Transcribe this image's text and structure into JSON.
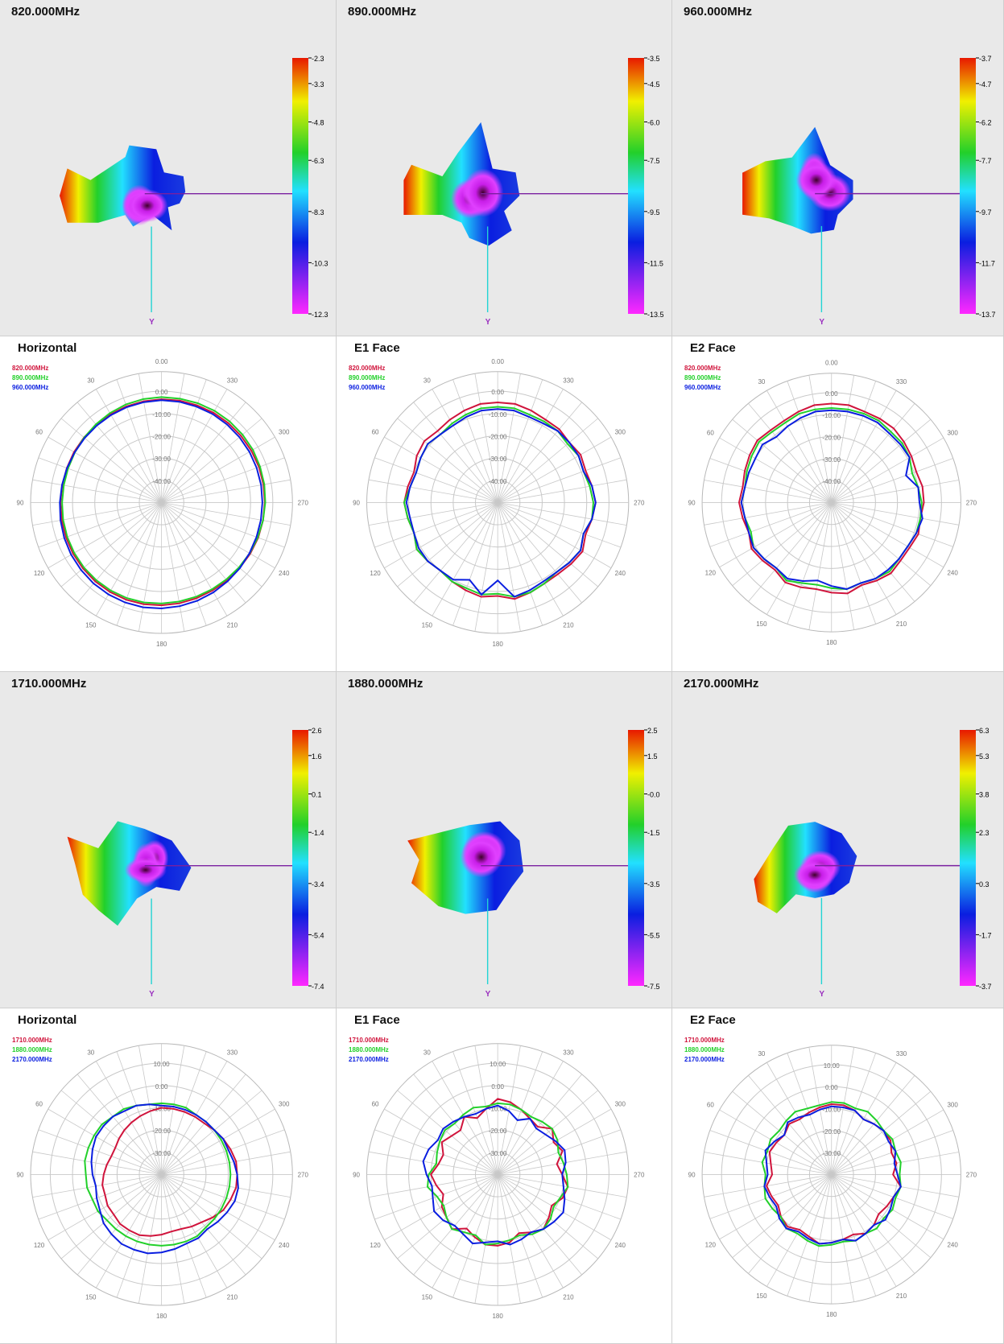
{
  "colors": {
    "series": [
      "#d0143c",
      "#22d02a",
      "#0a1ee0"
    ],
    "colorbar_top": "#e81800",
    "colorbar_bottom": "#ff28ff",
    "axis_y_line": "#22d4d4",
    "axis_x_line": "#7a1fa0",
    "axis_y_label": "#9a2fbf"
  },
  "icons": {
    "pattern_3d": "antenna-3d-radiation-pattern"
  },
  "panels3d": [
    {
      "title": "820.000MHz",
      "scale": [
        "-2.3",
        "-3.3",
        "-4.8",
        "-6.3",
        "-8.3",
        "-10.3",
        "-12.3"
      ],
      "axis_label": "Y"
    },
    {
      "title": "890.000MHz",
      "scale": [
        "-3.5",
        "-4.5",
        "-6.0",
        "-7.5",
        "-9.5",
        "-11.5",
        "-13.5"
      ],
      "axis_label": "Y"
    },
    {
      "title": "960.000MHz",
      "scale": [
        "-3.7",
        "-4.7",
        "-6.2",
        "-7.7",
        "-9.7",
        "-11.7",
        "-13.7"
      ],
      "axis_label": "Y"
    },
    {
      "title": "1710.000MHz",
      "scale": [
        "2.6",
        "1.6",
        "0.1",
        "-1.4",
        "-3.4",
        "-5.4",
        "-7.4"
      ],
      "axis_label": "Y"
    },
    {
      "title": "1880.000MHz",
      "scale": [
        "2.5",
        "1.5",
        "-0.0",
        "-1.5",
        "-3.5",
        "-5.5",
        "-7.5"
      ],
      "axis_label": "Y"
    },
    {
      "title": "2170.000MHz",
      "scale": [
        "6.3",
        "5.3",
        "3.8",
        "2.3",
        "0.3",
        "-1.7",
        "-3.7"
      ],
      "axis_label": "Y"
    }
  ],
  "chart_data": [
    {
      "type": "polar",
      "title": "Horizontal",
      "legend": [
        "820.000MHz",
        "890.000MHz",
        "960.000MHz"
      ],
      "rlim": [
        -50,
        0
      ],
      "ring_labels": [
        "0.00",
        "-10.00",
        "-20.00",
        "-30.00",
        "-40.00"
      ],
      "angle_labels": [
        "0.00",
        "30",
        "60",
        "90",
        "120",
        "150",
        "180",
        "210",
        "240",
        "270",
        "300",
        "330"
      ],
      "series": [
        {
          "name": "820.000MHz",
          "values": [
            -3.6,
            -3.8,
            -4.0,
            -4.2,
            -4.4,
            -4.5,
            -4.6,
            -4.7,
            -4.7,
            -4.6,
            -4.5,
            -4.3,
            -4.1,
            -3.9,
            -3.7,
            -3.6,
            -3.5,
            -3.6,
            -3.8,
            -4.0,
            -4.2,
            -4.3,
            -4.3,
            -4.2,
            -4.0,
            -3.8,
            -3.7,
            -3.6,
            -3.5,
            -3.4,
            -3.4,
            -3.4,
            -3.4,
            -3.4,
            -3.5,
            -3.5
          ]
        },
        {
          "name": "890.000MHz",
          "values": [
            -2.6,
            -2.8,
            -3.1,
            -3.6,
            -4.1,
            -4.6,
            -5.0,
            -5.3,
            -5.4,
            -5.3,
            -5.1,
            -4.9,
            -4.7,
            -4.5,
            -4.4,
            -4.3,
            -4.3,
            -4.4,
            -4.6,
            -4.8,
            -4.9,
            -4.9,
            -4.8,
            -4.6,
            -4.3,
            -4.0,
            -3.7,
            -3.4,
            -3.1,
            -2.9,
            -2.6,
            -2.5,
            -2.4,
            -2.4,
            -2.5,
            -2.6
          ]
        },
        {
          "name": "960.000MHz",
          "values": [
            -4.0,
            -4.2,
            -4.4,
            -4.6,
            -4.8,
            -4.9,
            -4.9,
            -4.8,
            -4.6,
            -4.3,
            -3.9,
            -3.5,
            -3.1,
            -2.8,
            -2.5,
            -2.3,
            -2.2,
            -2.2,
            -2.4,
            -2.7,
            -3.0,
            -3.4,
            -3.8,
            -4.1,
            -4.4,
            -4.6,
            -4.7,
            -4.7,
            -4.6,
            -4.5,
            -4.4,
            -4.3,
            -4.2,
            -4.1,
            -4.1,
            -4.0
          ]
        }
      ]
    },
    {
      "type": "polar",
      "title": "E1 Face",
      "legend": [
        "820.000MHz",
        "890.000MHz",
        "960.000MHz"
      ],
      "rlim": [
        -50,
        0
      ],
      "ring_labels": [
        "0.00",
        "-10.00",
        "-20.00",
        "-30.00",
        "-40.00"
      ],
      "angle_labels": [
        "0.00",
        "30",
        "60",
        "90",
        "120",
        "150",
        "180",
        "210",
        "240",
        "270",
        "300",
        "330"
      ],
      "series": [
        {
          "name": "820.000MHz",
          "values": [
            -5,
            -5,
            -6,
            -7,
            -8,
            -7,
            -8,
            -10,
            -9,
            -8,
            -9,
            -10,
            -8,
            -9,
            -10,
            -9,
            -8,
            -7,
            -8,
            -6,
            -7,
            -8,
            -8,
            -7,
            -6,
            -8,
            -7,
            -6,
            -7,
            -8,
            -7,
            -8,
            -7,
            -7,
            -6,
            -5
          ]
        },
        {
          "name": "890.000MHz",
          "values": [
            -7,
            -7,
            -8,
            -9,
            -10,
            -9,
            -10,
            -11,
            -10,
            -8,
            -9,
            -10,
            -8,
            -9,
            -10,
            -9,
            -9,
            -8,
            -9,
            -7,
            -7,
            -8,
            -9,
            -8,
            -7,
            -9,
            -7,
            -7,
            -8,
            -9,
            -8,
            -9,
            -8,
            -8,
            -8,
            -7
          ]
        },
        {
          "name": "960.000MHz",
          "values": [
            -8,
            -8,
            -9,
            -10,
            -10,
            -9,
            -10,
            -11,
            -10,
            -9,
            -10,
            -10,
            -9,
            -9,
            -10,
            -10,
            -13,
            -8,
            -15,
            -7,
            -8,
            -9,
            -9,
            -8,
            -7,
            -9,
            -7,
            -6,
            -7,
            -9,
            -8,
            -8,
            -8,
            -9,
            -9,
            -8
          ]
        }
      ]
    },
    {
      "type": "polar",
      "title": "E2 Face",
      "legend": [
        "820.000MHz",
        "890.000MHz",
        "960.000MHz"
      ],
      "rlim": [
        -50,
        0
      ],
      "ring_labels": [
        "0.00",
        "-10.00",
        "-20.00",
        "-30.00",
        "-40.00"
      ],
      "angle_labels": [
        "0.00",
        "30",
        "60",
        "90",
        "120",
        "150",
        "180",
        "210",
        "240",
        "270",
        "300",
        "330"
      ],
      "series": [
        {
          "name": "820.000MHz",
          "values": [
            -5,
            -5,
            -6,
            -7,
            -7,
            -6,
            -7,
            -8,
            -9,
            -8,
            -9,
            -10,
            -8,
            -9,
            -10,
            -8,
            -9,
            -10,
            -9,
            -8,
            -10,
            -9,
            -8,
            -9,
            -9,
            -8,
            -9,
            -8,
            -8,
            -9,
            -8,
            -7,
            -6,
            -6,
            -6,
            -5
          ]
        },
        {
          "name": "890.000MHz",
          "values": [
            -7,
            -7,
            -7,
            -8,
            -8,
            -7,
            -8,
            -9,
            -10,
            -9,
            -10,
            -11,
            -9,
            -10,
            -11,
            -9,
            -11,
            -12,
            -11,
            -10,
            -11,
            -10,
            -9,
            -10,
            -10,
            -9,
            -9,
            -9,
            -10,
            -11,
            -9,
            -8,
            -8,
            -7,
            -7,
            -7
          ]
        },
        {
          "name": "960.000MHz",
          "values": [
            -8,
            -8,
            -9,
            -10,
            -11,
            -9,
            -10,
            -10,
            -10,
            -9,
            -10,
            -10,
            -9,
            -10,
            -11,
            -10,
            -12,
            -14,
            -12,
            -10,
            -11,
            -10,
            -10,
            -10,
            -10,
            -9,
            -8,
            -10,
            -10,
            -14,
            -9,
            -9,
            -9,
            -8,
            -8,
            -8
          ]
        }
      ]
    },
    {
      "type": "polar",
      "title": "Horizontal",
      "legend": [
        "1710.000MHz",
        "1880.000MHz",
        "2170.000MHz"
      ],
      "rlim": [
        -40,
        10
      ],
      "ring_labels": [
        "10.00",
        "0.00",
        "-10.00",
        "-20.00",
        "-30.00"
      ],
      "angle_labels": [
        "30",
        "60",
        "90",
        "120",
        "150",
        "180",
        "210",
        "240",
        "270",
        "300",
        "330"
      ],
      "series": [
        {
          "name": "1710.000MHz",
          "values": [
            -10,
            -11,
            -12,
            -13,
            -14,
            -15,
            -16,
            -16,
            -15,
            -14,
            -13,
            -13,
            -12,
            -12,
            -11,
            -11,
            -11,
            -12,
            -13,
            -14,
            -14,
            -13,
            -12,
            -10,
            -8,
            -7,
            -6,
            -6,
            -6,
            -7,
            -8,
            -9,
            -10,
            -10,
            -10,
            -10
          ]
        },
        {
          "name": "1880.000MHz",
          "values": [
            -8,
            -8,
            -7,
            -6,
            -6,
            -5,
            -5,
            -5,
            -5,
            -6,
            -6,
            -7,
            -7,
            -8,
            -8,
            -8,
            -8,
            -8,
            -8,
            -8,
            -8,
            -8,
            -9,
            -9,
            -9,
            -9,
            -9,
            -9,
            -9,
            -9,
            -9,
            -9,
            -9,
            -9,
            -8,
            -8
          ]
        },
        {
          "name": "2170.000MHz",
          "values": [
            -9,
            -8,
            -7,
            -7,
            -6,
            -6,
            -6,
            -7,
            -8,
            -9,
            -10,
            -9,
            -8,
            -6,
            -5,
            -4,
            -4,
            -4,
            -5,
            -6,
            -7,
            -7,
            -8,
            -7,
            -6,
            -5,
            -5,
            -6,
            -7,
            -8,
            -8,
            -9,
            -9,
            -9,
            -9,
            -9
          ]
        }
      ]
    },
    {
      "type": "polar",
      "title": "E1 Face",
      "legend": [
        "1710.000MHz",
        "1880.000MHz",
        "2170.000MHz"
      ],
      "rlim": [
        -40,
        10
      ],
      "ring_labels": [
        "10.00",
        "0.00",
        "-10.00",
        "-20.00",
        "-30.00"
      ],
      "angle_labels": [
        "30",
        "60",
        "90",
        "120",
        "150",
        "180",
        "210",
        "240",
        "270",
        "300",
        "330"
      ],
      "series": [
        {
          "name": "1710.000MHz",
          "values": [
            -6,
            -10,
            -13,
            -10,
            -14,
            -13,
            -11,
            -14,
            -13,
            -10,
            -12,
            -14,
            -11,
            -10,
            -8,
            -12,
            -10,
            -8,
            -8,
            -9,
            -12,
            -10,
            -8,
            -10,
            -12,
            -9,
            -8,
            -11,
            -13,
            -9,
            -11,
            -8,
            -12,
            -11,
            -9,
            -7
          ]
        },
        {
          "name": "1880.000MHz",
          "values": [
            -8,
            -9,
            -8,
            -9,
            -10,
            -9,
            -10,
            -11,
            -12,
            -9,
            -8,
            -11,
            -12,
            -10,
            -8,
            -10,
            -11,
            -8,
            -9,
            -10,
            -11,
            -9,
            -8,
            -9,
            -11,
            -10,
            -8,
            -9,
            -10,
            -11,
            -9,
            -8,
            -9,
            -10,
            -9,
            -8
          ]
        },
        {
          "name": "2170.000MHz",
          "values": [
            -9,
            -10,
            -11,
            -10,
            -9,
            -8,
            -9,
            -7,
            -6,
            -8,
            -10,
            -9,
            -7,
            -8,
            -10,
            -9,
            -7,
            -9,
            -10,
            -8,
            -9,
            -10,
            -8,
            -7,
            -6,
            -8,
            -10,
            -11,
            -9,
            -8,
            -10,
            -12,
            -13,
            -11,
            -14,
            -11
          ]
        }
      ]
    },
    {
      "type": "polar",
      "title": "E2 Face",
      "legend": [
        "1710.000MHz",
        "1880.000MHz",
        "2170.000MHz"
      ],
      "rlim": [
        -40,
        10
      ],
      "ring_labels": [
        "10.00",
        "0.00",
        "-10.00",
        "-20.00",
        "-30.00"
      ],
      "angle_labels": [
        "30",
        "60",
        "90",
        "120",
        "150",
        "180",
        "210",
        "240",
        "270",
        "300",
        "330"
      ],
      "series": [
        {
          "name": "1710.000MHz",
          "values": [
            -8,
            -9,
            -10,
            -11,
            -10,
            -12,
            -11,
            -10,
            -12,
            -13,
            -10,
            -11,
            -12,
            -10,
            -9,
            -11,
            -10,
            -8,
            -9,
            -10,
            -11,
            -9,
            -10,
            -12,
            -11,
            -10,
            -8,
            -12,
            -10,
            -11,
            -9,
            -9,
            -10,
            -11,
            -9,
            -8
          ]
        },
        {
          "name": "1880.000MHz",
          "values": [
            -7,
            -8,
            -8,
            -7,
            -8,
            -9,
            -8,
            -9,
            -8,
            -10,
            -9,
            -8,
            -9,
            -10,
            -8,
            -9,
            -8,
            -7,
            -8,
            -9,
            -8,
            -9,
            -8,
            -9,
            -8,
            -9,
            -8,
            -9,
            -8,
            -9,
            -8,
            -9,
            -8,
            -7,
            -8,
            -7
          ]
        },
        {
          "name": "2170.000MHz",
          "values": [
            -9,
            -10,
            -11,
            -10,
            -9,
            -12,
            -10,
            -8,
            -10,
            -11,
            -9,
            -10,
            -11,
            -9,
            -8,
            -10,
            -9,
            -8,
            -9,
            -10,
            -8,
            -9,
            -10,
            -8,
            -9,
            -10,
            -8,
            -10,
            -11,
            -9,
            -10,
            -9,
            -10,
            -11,
            -9,
            -9
          ]
        }
      ]
    }
  ]
}
